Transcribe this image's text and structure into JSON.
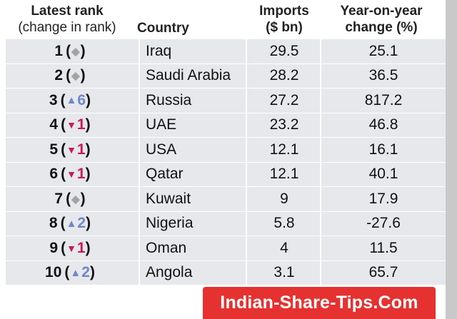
{
  "headers": {
    "rank_line1": "Latest rank",
    "rank_line2": "(change in rank)",
    "country": "Country",
    "imports_line1": "Imports",
    "imports_line2": "($ bn)",
    "change_line1": "Year-on-year",
    "change_line2": "change (%)"
  },
  "colors": {
    "row_bg": "#e7e8ec",
    "up": "#6f87c8",
    "down": "#c81857",
    "same": "#a3a3a3",
    "watermark_bg": "#e53230"
  },
  "rows": [
    {
      "rank": "1",
      "direction": "same",
      "delta": "",
      "country": "Iraq",
      "imports": "29.5",
      "change": "25.1"
    },
    {
      "rank": "2",
      "direction": "same",
      "delta": "",
      "country": "Saudi Arabia",
      "imports": "28.2",
      "change": "36.5"
    },
    {
      "rank": "3",
      "direction": "up",
      "delta": "6",
      "country": "Russia",
      "imports": "27.2",
      "change": "817.2"
    },
    {
      "rank": "4",
      "direction": "down",
      "delta": "1",
      "country": "UAE",
      "imports": "23.2",
      "change": "46.8"
    },
    {
      "rank": "5",
      "direction": "down",
      "delta": "1",
      "country": "USA",
      "imports": "12.1",
      "change": "16.1"
    },
    {
      "rank": "6",
      "direction": "down",
      "delta": "1",
      "country": "Qatar",
      "imports": "12.1",
      "change": "40.1"
    },
    {
      "rank": "7",
      "direction": "same",
      "delta": "",
      "country": "Kuwait",
      "imports": "9",
      "change": "17.9"
    },
    {
      "rank": "8",
      "direction": "up",
      "delta": "2",
      "country": "Nigeria",
      "imports": "5.8",
      "change": "-27.6"
    },
    {
      "rank": "9",
      "direction": "down",
      "delta": "1",
      "country": "Oman",
      "imports": "4",
      "change": "11.5"
    },
    {
      "rank": "10",
      "direction": "up",
      "delta": "2",
      "country": "Angola",
      "imports": "3.1",
      "change": "65.7"
    }
  ],
  "watermark": "Indian-Share-Tips.Com"
}
